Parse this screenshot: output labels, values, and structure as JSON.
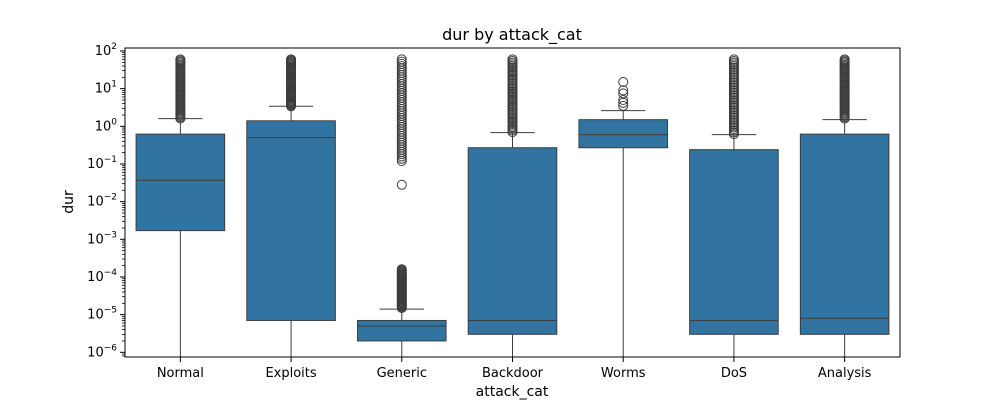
{
  "chart_data": {
    "type": "box",
    "title": "dur by attack_cat",
    "xlabel": "attack_cat",
    "ylabel": "dur",
    "yscale": "log",
    "ylim": [
      7.5e-07,
      120
    ],
    "yticks": [
      {
        "value": 1e-06,
        "base": "10",
        "exp": "−6"
      },
      {
        "value": 1e-05,
        "base": "10",
        "exp": "−5"
      },
      {
        "value": 0.0001,
        "base": "10",
        "exp": "−4"
      },
      {
        "value": 0.001,
        "base": "10",
        "exp": "−3"
      },
      {
        "value": 0.01,
        "base": "10",
        "exp": "−2"
      },
      {
        "value": 0.1,
        "base": "10",
        "exp": "−1"
      },
      {
        "value": 1,
        "base": "10",
        "exp": "0"
      },
      {
        "value": 10,
        "base": "10",
        "exp": "1"
      },
      {
        "value": 100,
        "base": "10",
        "exp": "2"
      }
    ],
    "box_color": "#3274a1",
    "line_color": "#3d3d3d",
    "categories": [
      "Normal",
      "Exploits",
      "Generic",
      "Backdoor",
      "Worms",
      "DoS",
      "Analysis"
    ],
    "boxes": [
      {
        "category": "Normal",
        "whislo": 7.5e-07,
        "q1": 0.0017,
        "med": 0.037,
        "q3": 0.62,
        "whishi": 1.6,
        "fliers": {
          "dense_ranges": [
            [
              1.6,
              60
            ]
          ],
          "points": []
        }
      },
      {
        "category": "Exploits",
        "whislo": 7.5e-07,
        "q1": 7e-06,
        "med": 0.5,
        "q3": 1.4,
        "whishi": 3.4,
        "fliers": {
          "dense_ranges": [
            [
              3.4,
              60
            ]
          ],
          "points": []
        }
      },
      {
        "category": "Generic",
        "whislo": 7.5e-07,
        "q1": 2e-06,
        "med": 5e-06,
        "q3": 7e-06,
        "whishi": 1.4e-05,
        "fliers": {
          "dense_ranges": [
            [
              1.5e-05,
              0.00016
            ],
            [
              0.12,
              60
            ]
          ],
          "points": [
            0.028
          ]
        }
      },
      {
        "category": "Backdoor",
        "whislo": 7.5e-07,
        "q1": 3e-06,
        "med": 7e-06,
        "q3": 0.27,
        "whishi": 0.68,
        "fliers": {
          "dense_ranges": [
            [
              0.7,
              60
            ]
          ],
          "points": []
        }
      },
      {
        "category": "Worms",
        "whislo": 7.5e-07,
        "q1": 0.27,
        "med": 0.6,
        "q3": 1.5,
        "whishi": 2.6,
        "fliers": {
          "dense_ranges": [],
          "points": [
            3.5,
            4.2,
            5.0,
            7.5,
            9.0,
            15
          ]
        }
      },
      {
        "category": "DoS",
        "whislo": 7.5e-07,
        "q1": 3e-06,
        "med": 7e-06,
        "q3": 0.24,
        "whishi": 0.6,
        "fliers": {
          "dense_ranges": [
            [
              0.62,
              60
            ]
          ],
          "points": []
        }
      },
      {
        "category": "Analysis",
        "whislo": 7.5e-07,
        "q1": 3e-06,
        "med": 8e-06,
        "q3": 0.62,
        "whishi": 1.5,
        "fliers": {
          "dense_ranges": [
            [
              1.6,
              60
            ]
          ],
          "points": [
            4.5,
            8,
            20,
            30,
            35
          ]
        }
      }
    ]
  }
}
